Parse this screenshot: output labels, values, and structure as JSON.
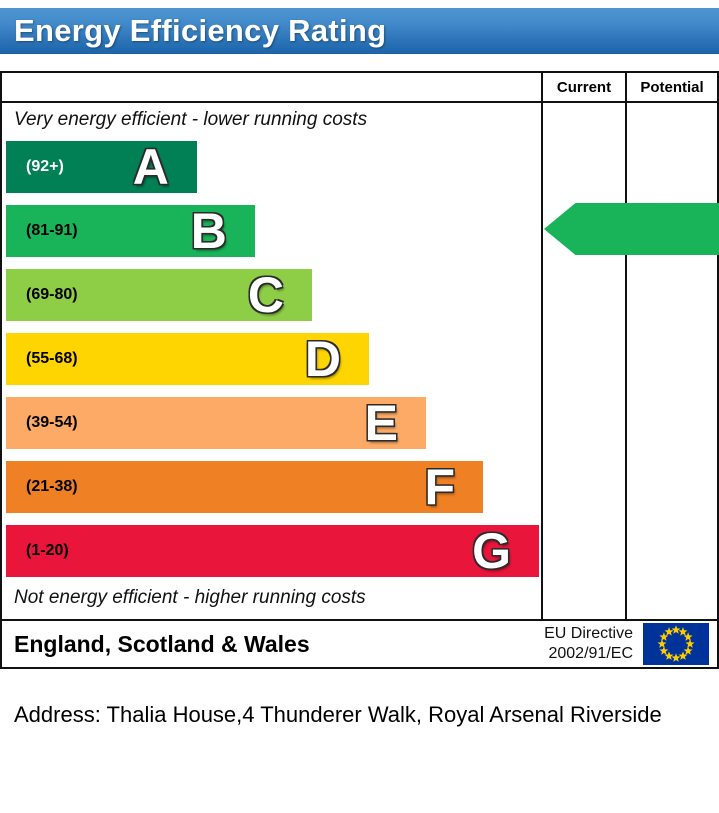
{
  "title_bar": {
    "title": "Energy Efficiency Rating"
  },
  "table": {
    "columns": {
      "current": "Current",
      "potential": "Potential"
    }
  },
  "chart_data": {
    "type": "bar",
    "subtype": "epc-energy-efficiency-rating",
    "title": "Energy Efficiency Rating",
    "top_note": "Very energy efficient - lower running costs",
    "bottom_note": "Not energy efficient - higher running costs",
    "bands": [
      {
        "letter": "A",
        "range": "(92+)",
        "color": "#008054",
        "range_text_color": "#ffffff",
        "width_pct": 35.8
      },
      {
        "letter": "B",
        "range": "(81-91)",
        "color": "#19b459",
        "range_text_color": "#000000",
        "width_pct": 46.7
      },
      {
        "letter": "C",
        "range": "(69-80)",
        "color": "#8dce46",
        "range_text_color": "#000000",
        "width_pct": 57.4
      },
      {
        "letter": "D",
        "range": "(55-68)",
        "color": "#ffd500",
        "range_text_color": "#000000",
        "width_pct": 68.1
      },
      {
        "letter": "E",
        "range": "(39-54)",
        "color": "#fcaa65",
        "range_text_color": "#000000",
        "width_pct": 78.8
      },
      {
        "letter": "F",
        "range": "(21-38)",
        "color": "#ef8023",
        "range_text_color": "#000000",
        "width_pct": 89.5
      },
      {
        "letter": "G",
        "range": "(1-20)",
        "color": "#e9153b",
        "range_text_color": "#000000",
        "width_pct": 100
      }
    ],
    "current": {
      "label": "Current",
      "value": 87,
      "band": "B",
      "color": "#19b459"
    },
    "potential": {
      "label": "Potential",
      "value": 87,
      "band": "B",
      "color": "#19b459"
    }
  },
  "footer": {
    "region": "England, Scotland & Wales",
    "directive_line1": "EU Directive",
    "directive_line2": "2002/91/EC"
  },
  "address_line": "Address: Thalia House,4 Thunderer Walk, Royal Arsenal Riverside",
  "colors": {
    "header_blue": "#2f77bb",
    "border": "#111111",
    "eu_flag_blue": "#003399",
    "eu_star_yellow": "#ffcc00"
  }
}
